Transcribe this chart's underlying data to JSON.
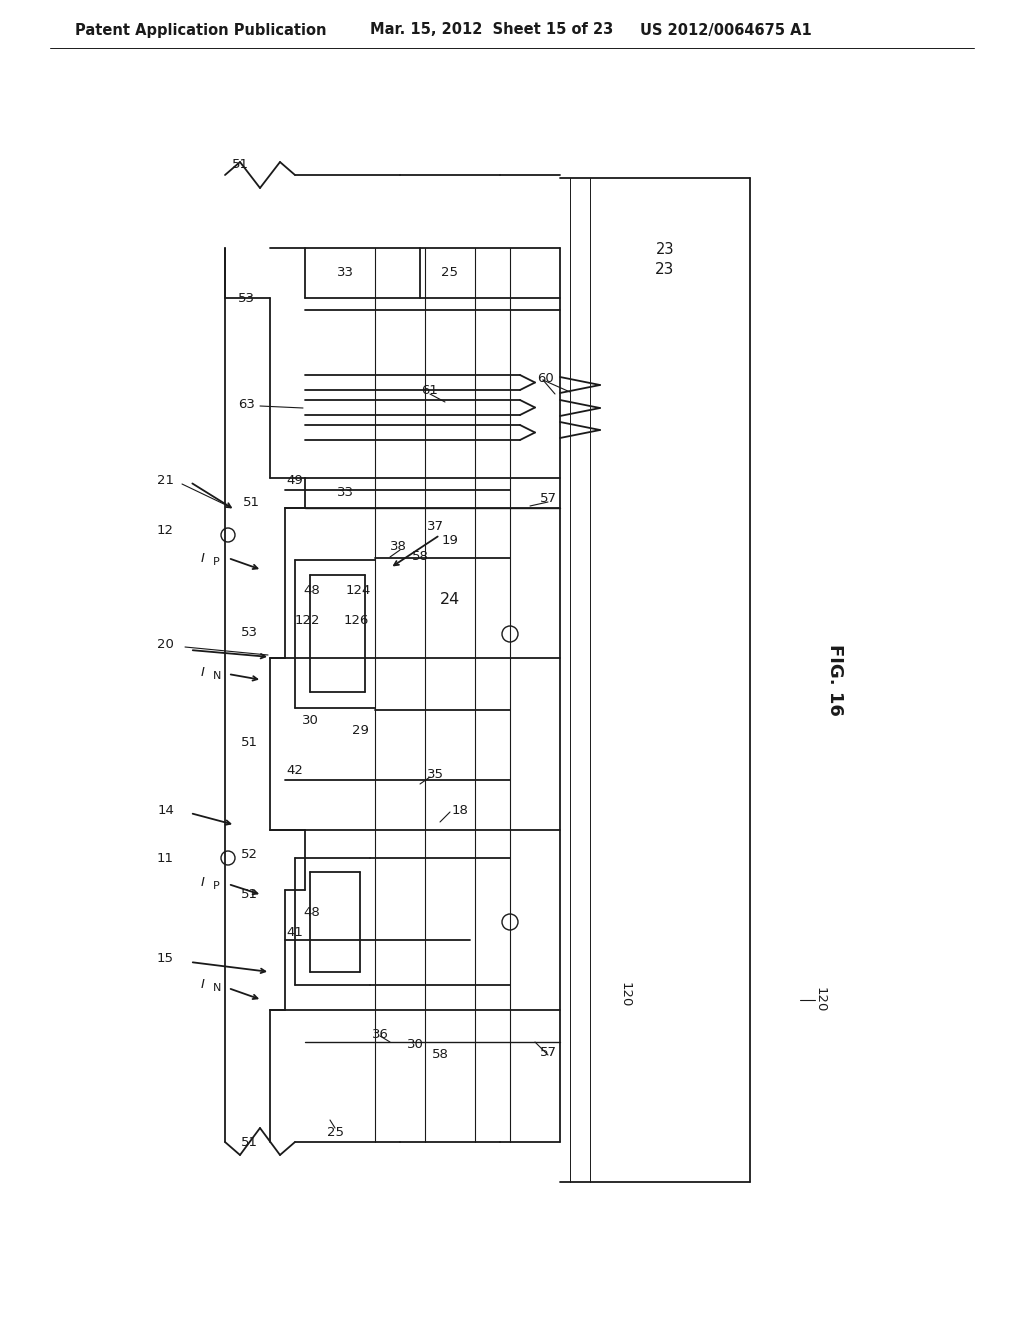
{
  "title_left": "Patent Application Publication",
  "title_mid": "Mar. 15, 2012  Sheet 15 of 23",
  "title_right": "US 2012/0064675 A1",
  "fig_label": "FIG. 16",
  "background_color": "#ffffff",
  "line_color": "#1a1a1a",
  "header_fontsize": 10.5,
  "label_fontsize": 9.5
}
